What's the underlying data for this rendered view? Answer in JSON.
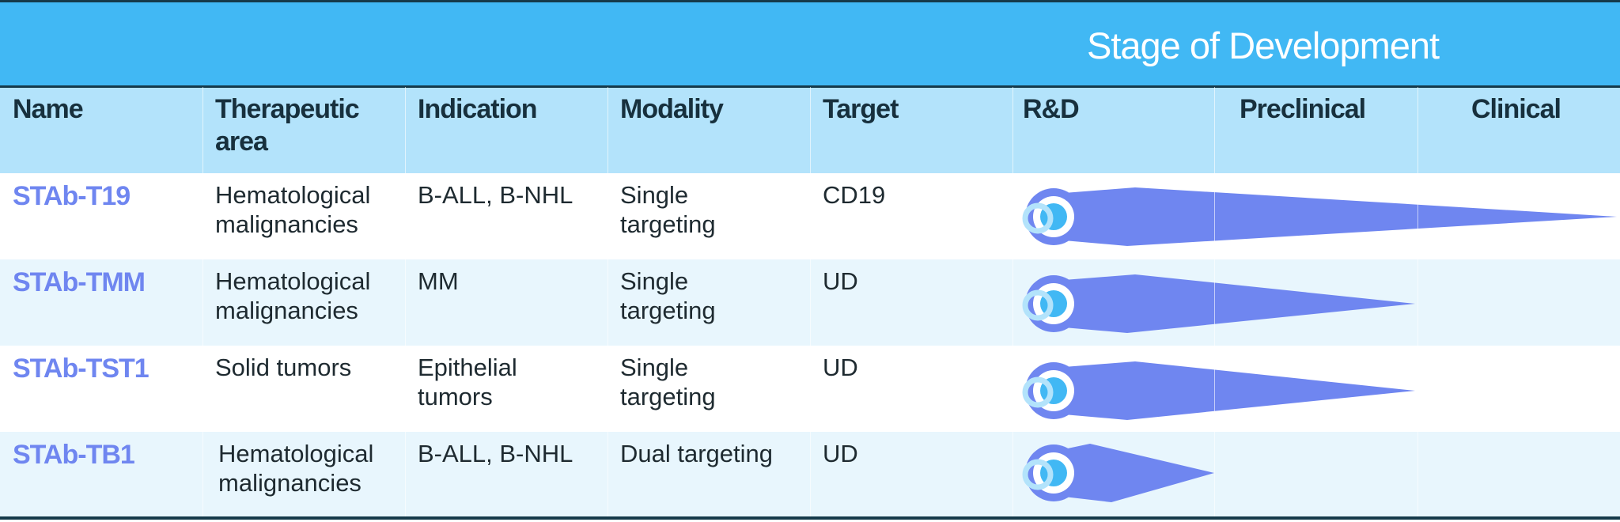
{
  "header": {
    "title": "Stage of Development"
  },
  "columns": [
    "Name",
    "Therapeutic area",
    "Indication",
    "Modality",
    "Target",
    "R&D",
    "Preclinical",
    "Clinical"
  ],
  "rows": [
    {
      "name": "STAb-T19",
      "therapeutic_area": "Hematological malignancies",
      "indication": "B-ALL, B-NHL",
      "modality": "Single targeting",
      "target": "CD19"
    },
    {
      "name": "STAb-TMM",
      "therapeutic_area": "Hematological malignancies",
      "indication": "MM",
      "modality": "Single targeting",
      "target": "UD"
    },
    {
      "name": "STAb-TST1",
      "therapeutic_area": "Solid tumors",
      "indication": "Epithelial tumors",
      "modality": "Single targeting",
      "target": "UD"
    },
    {
      "name": "STAb-TB1",
      "therapeutic_area": "Hematological malignancies",
      "indication": "B-ALL, B-NHL",
      "modality": "Dual targeting",
      "target": "UD"
    }
  ]
}
